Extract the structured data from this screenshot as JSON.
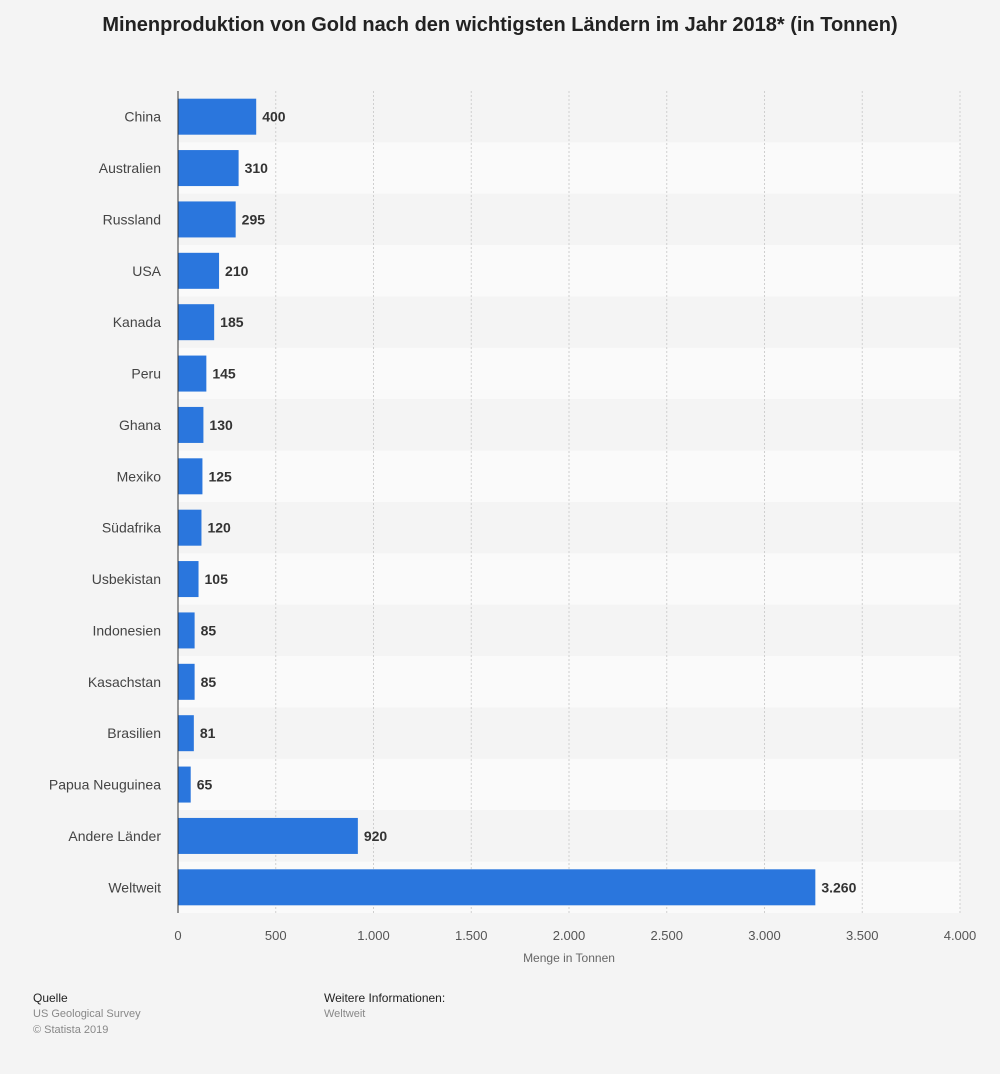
{
  "chart_data": {
    "type": "bar",
    "orientation": "horizontal",
    "title": "Minenproduktion von Gold nach den wichtigsten Ländern im Jahr 2018* (in Tonnen)",
    "xlabel": "Menge in Tonnen",
    "ylabel": "",
    "categories": [
      "China",
      "Australien",
      "Russland",
      "USA",
      "Kanada",
      "Peru",
      "Ghana",
      "Mexiko",
      "Südafrika",
      "Usbekistan",
      "Indonesien",
      "Kasachstan",
      "Brasilien",
      "Papua Neuguinea",
      "Andere Länder",
      "Weltweit"
    ],
    "values": [
      400,
      310,
      295,
      210,
      185,
      145,
      130,
      125,
      120,
      105,
      85,
      85,
      81,
      65,
      920,
      3260
    ],
    "value_labels": [
      "400",
      "310",
      "295",
      "210",
      "185",
      "145",
      "130",
      "125",
      "120",
      "105",
      "85",
      "85",
      "81",
      "65",
      "920",
      "3.260"
    ],
    "xlim": [
      0,
      4000
    ],
    "ticks": [
      0,
      500,
      1000,
      1500,
      2000,
      2500,
      3000,
      3500,
      4000
    ],
    "tick_labels": [
      "0",
      "500",
      "1.000",
      "1.500",
      "2.000",
      "2.500",
      "3.000",
      "3.500",
      "4.000"
    ],
    "bar_color": "#2a76dd",
    "grid": true,
    "legend": "none"
  },
  "footer": {
    "source_heading": "Quelle",
    "source": "US Geological Survey",
    "copyright": "© Statista 2019",
    "info_heading": "Weitere Informationen:",
    "info": "Weltweit"
  }
}
